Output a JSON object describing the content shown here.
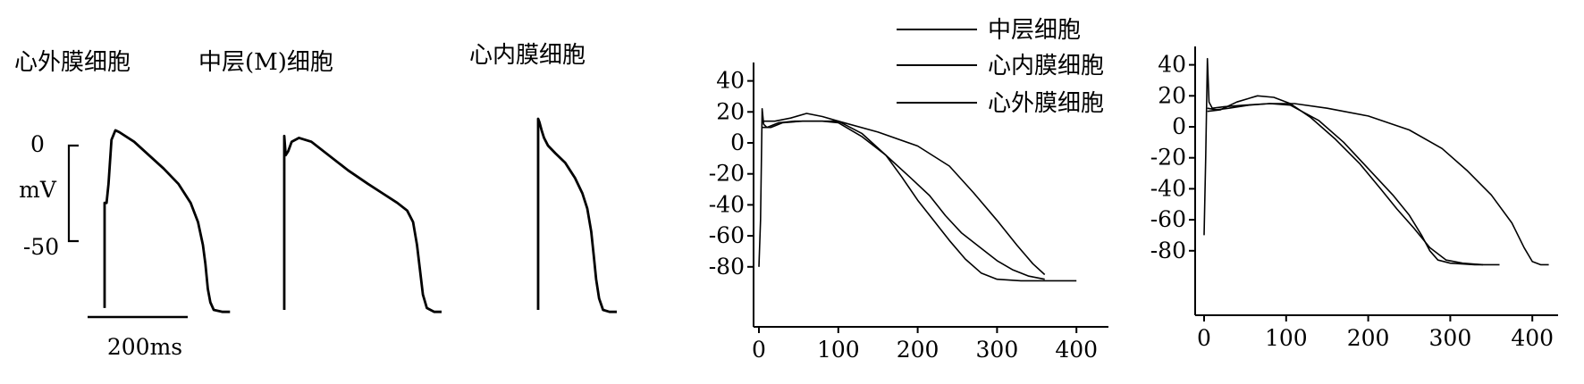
{
  "chart_data": [
    {
      "type": "line",
      "panel": "traces",
      "labels": [
        "心外膜细胞",
        "中层(M)细胞",
        "心内膜细胞"
      ],
      "scale": {
        "top_label": "0",
        "unit_label": "mV",
        "bottom_label": "-50",
        "time_label": "200ms"
      },
      "series": [
        {
          "name": "心外膜细胞",
          "points": [
            [
              0,
              -85
            ],
            [
              0,
              -30
            ],
            [
              4,
              -30
            ],
            [
              8,
              -20
            ],
            [
              14,
              3
            ],
            [
              22,
              8
            ],
            [
              30,
              7
            ],
            [
              60,
              2
            ],
            [
              90,
              -5
            ],
            [
              120,
              -12
            ],
            [
              150,
              -20
            ],
            [
              175,
              -30
            ],
            [
              190,
              -40
            ],
            [
              200,
              -52
            ],
            [
              205,
              -62
            ],
            [
              210,
              -75
            ],
            [
              215,
              -82
            ],
            [
              222,
              -86
            ],
            [
              240,
              -87
            ],
            [
              255,
              -87
            ]
          ]
        },
        {
          "name": "中层(M)细胞",
          "points": [
            [
              0,
              -86
            ],
            [
              0,
              5
            ],
            [
              3,
              -5
            ],
            [
              8,
              -3
            ],
            [
              15,
              2
            ],
            [
              30,
              4
            ],
            [
              55,
              2
            ],
            [
              90,
              -5
            ],
            [
              130,
              -13
            ],
            [
              170,
              -20
            ],
            [
              200,
              -25
            ],
            [
              230,
              -30
            ],
            [
              250,
              -34
            ],
            [
              262,
              -40
            ],
            [
              270,
              -52
            ],
            [
              276,
              -65
            ],
            [
              282,
              -78
            ],
            [
              290,
              -85
            ],
            [
              305,
              -87
            ],
            [
              320,
              -87
            ]
          ]
        },
        {
          "name": "心内膜细胞",
          "points": [
            [
              0,
              -86
            ],
            [
              0,
              14
            ],
            [
              3,
              12
            ],
            [
              7,
              8
            ],
            [
              12,
              4
            ],
            [
              20,
              0
            ],
            [
              35,
              -4
            ],
            [
              55,
              -9
            ],
            [
              75,
              -17
            ],
            [
              90,
              -25
            ],
            [
              100,
              -33
            ],
            [
              108,
              -45
            ],
            [
              113,
              -57
            ],
            [
              118,
              -70
            ],
            [
              124,
              -80
            ],
            [
              132,
              -86
            ],
            [
              145,
              -87
            ],
            [
              160,
              -87
            ]
          ]
        }
      ]
    },
    {
      "type": "line",
      "panel": "simulation-1",
      "ylim": [
        -90,
        40
      ],
      "xlim": [
        0,
        420
      ],
      "x_ticks": [
        0,
        100,
        200,
        300,
        400
      ],
      "y_ticks": [
        40,
        20,
        0,
        -20,
        -40,
        -60,
        -80
      ],
      "series": [
        {
          "name": "中层细胞",
          "points": [
            [
              0,
              -80
            ],
            [
              2,
              -50
            ],
            [
              4,
              22
            ],
            [
              6,
              12
            ],
            [
              10,
              10
            ],
            [
              25,
              13
            ],
            [
              45,
              14
            ],
            [
              70,
              14
            ],
            [
              100,
              14
            ],
            [
              150,
              7
            ],
            [
              200,
              -2
            ],
            [
              240,
              -15
            ],
            [
              270,
              -32
            ],
            [
              300,
              -50
            ],
            [
              325,
              -66
            ],
            [
              345,
              -78
            ],
            [
              360,
              -85
            ]
          ]
        },
        {
          "name": "心内膜细胞",
          "points": [
            [
              4,
              10
            ],
            [
              15,
              10
            ],
            [
              30,
              13
            ],
            [
              55,
              14
            ],
            [
              80,
              14
            ],
            [
              100,
              13
            ],
            [
              130,
              4
            ],
            [
              160,
              -8
            ],
            [
              190,
              -22
            ],
            [
              215,
              -34
            ],
            [
              235,
              -47
            ],
            [
              255,
              -58
            ],
            [
              280,
              -68
            ],
            [
              300,
              -76
            ],
            [
              320,
              -82
            ],
            [
              340,
              -86
            ],
            [
              360,
              -88
            ]
          ]
        },
        {
          "name": "心外膜细胞",
          "points": [
            [
              4,
              14
            ],
            [
              20,
              14
            ],
            [
              40,
              16
            ],
            [
              60,
              19
            ],
            [
              80,
              17
            ],
            [
              100,
              14
            ],
            [
              130,
              6
            ],
            [
              160,
              -8
            ],
            [
              180,
              -22
            ],
            [
              200,
              -37
            ],
            [
              220,
              -50
            ],
            [
              240,
              -63
            ],
            [
              260,
              -75
            ],
            [
              280,
              -84
            ],
            [
              300,
              -88
            ],
            [
              330,
              -89
            ],
            [
              370,
              -89
            ],
            [
              400,
              -89
            ]
          ]
        }
      ]
    },
    {
      "type": "line",
      "panel": "simulation-2",
      "ylim": [
        -90,
        40
      ],
      "xlim": [
        0,
        420
      ],
      "x_ticks": [
        0,
        100,
        200,
        300,
        400
      ],
      "y_ticks": [
        40,
        20,
        0,
        -20,
        -40,
        -60,
        -80
      ],
      "series": [
        {
          "name": "中层细胞",
          "points": [
            [
              0,
              -70
            ],
            [
              2,
              -20
            ],
            [
              4,
              44
            ],
            [
              6,
              16
            ],
            [
              10,
              12
            ],
            [
              25,
              13
            ],
            [
              50,
              14
            ],
            [
              80,
              15
            ],
            [
              110,
              15
            ],
            [
              150,
              12
            ],
            [
              200,
              7
            ],
            [
              250,
              -2
            ],
            [
              290,
              -14
            ],
            [
              320,
              -28
            ],
            [
              350,
              -44
            ],
            [
              375,
              -62
            ],
            [
              390,
              -78
            ],
            [
              400,
              -87
            ],
            [
              410,
              -89
            ],
            [
              420,
              -89
            ]
          ]
        },
        {
          "name": "心内膜细胞",
          "points": [
            [
              4,
              12
            ],
            [
              15,
              11
            ],
            [
              30,
              12
            ],
            [
              55,
              14
            ],
            [
              80,
              15
            ],
            [
              105,
              14
            ],
            [
              140,
              4
            ],
            [
              170,
              -10
            ],
            [
              200,
              -27
            ],
            [
              230,
              -44
            ],
            [
              250,
              -57
            ],
            [
              265,
              -70
            ],
            [
              275,
              -80
            ],
            [
              285,
              -86
            ],
            [
              300,
              -88
            ],
            [
              330,
              -89
            ],
            [
              360,
              -89
            ]
          ]
        },
        {
          "name": "心外膜细胞",
          "points": [
            [
              4,
              10
            ],
            [
              20,
              11
            ],
            [
              40,
              16
            ],
            [
              65,
              20
            ],
            [
              85,
              19
            ],
            [
              105,
              15
            ],
            [
              130,
              6
            ],
            [
              160,
              -8
            ],
            [
              190,
              -24
            ],
            [
              215,
              -40
            ],
            [
              235,
              -53
            ],
            [
              255,
              -65
            ],
            [
              275,
              -78
            ],
            [
              295,
              -86
            ],
            [
              315,
              -88
            ],
            [
              340,
              -89
            ]
          ]
        }
      ]
    }
  ],
  "legend": [
    "中层细胞",
    "心内膜细胞",
    "心外膜细胞"
  ]
}
